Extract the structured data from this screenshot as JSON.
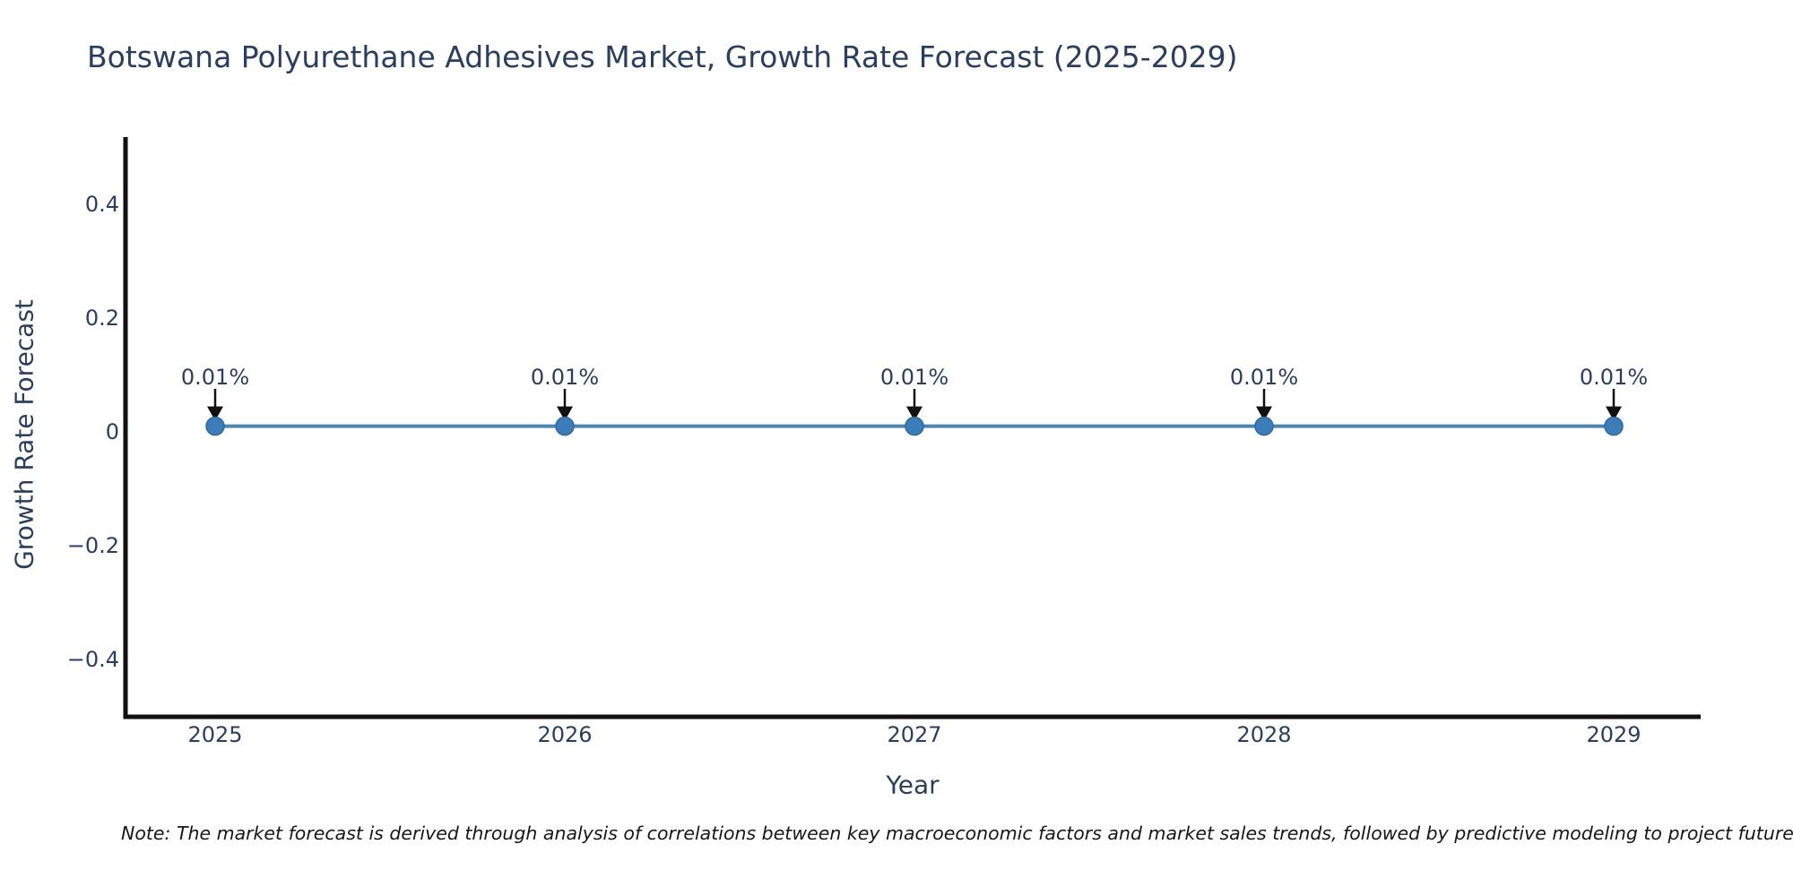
{
  "title": "Botswana Polyurethane Adhesives Market, Growth Rate Forecast (2025-2029)",
  "note": "Note: The market forecast is derived through analysis of correlations between key macroeconomic factors and market sales trends, followed by predictive modeling to project future sales",
  "chart_data": {
    "type": "line",
    "title": "Botswana Polyurethane Adhesives Market, Growth Rate Forecast (2025-2029)",
    "xlabel": "Year",
    "ylabel": "Growth Rate Forecast",
    "x": [
      2025,
      2026,
      2027,
      2028,
      2029
    ],
    "series": [
      {
        "name": "Growth Rate Forecast",
        "values": [
          0.01,
          0.01,
          0.01,
          0.01,
          0.01
        ]
      }
    ],
    "point_labels": [
      "0.01%",
      "0.01%",
      "0.01%",
      "0.01%",
      "0.01%"
    ],
    "xticks": {
      "values": [
        2025,
        2026,
        2027,
        2028,
        2029
      ],
      "labels": [
        "2025",
        "2026",
        "2027",
        "2028",
        "2029"
      ]
    },
    "yticks": {
      "values": [
        0.4,
        0.2,
        0,
        -0.2,
        -0.4
      ],
      "labels": [
        "0.4",
        "0.2",
        "0",
        "−0.2",
        "−0.4"
      ]
    },
    "ylim": [
      -0.5,
      0.52
    ],
    "grid": false,
    "legend_position": "none",
    "annotation_arrows": true,
    "colors": {
      "line": "#4d86ad",
      "marker_fill": "#3c7cb8",
      "marker_edge": "#2d6aa0",
      "arrow": "#111111",
      "text": "#2a3f5f",
      "axis_line": "#111111"
    }
  }
}
